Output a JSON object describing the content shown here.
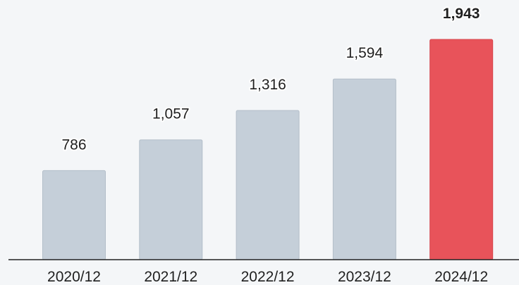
{
  "chart_data": {
    "type": "bar",
    "categories": [
      "2020/12",
      "2021/12",
      "2022/12",
      "2023/12",
      "2024/12"
    ],
    "values": [
      786,
      1057,
      1316,
      1594,
      1943
    ],
    "value_labels": [
      "786",
      "1,057",
      "1,316",
      "1,594",
      "1,943"
    ],
    "title": "",
    "xlabel": "",
    "ylabel": "",
    "highlight_index": 4,
    "grid": false,
    "legend": "none",
    "colors": {
      "bar": "#c5cfd9",
      "bar_stroke": "#b3bec9",
      "highlight": "#e8535a",
      "highlight_stroke": "#d6454c",
      "axis": "#222222",
      "background": "#f4f6f8"
    }
  }
}
